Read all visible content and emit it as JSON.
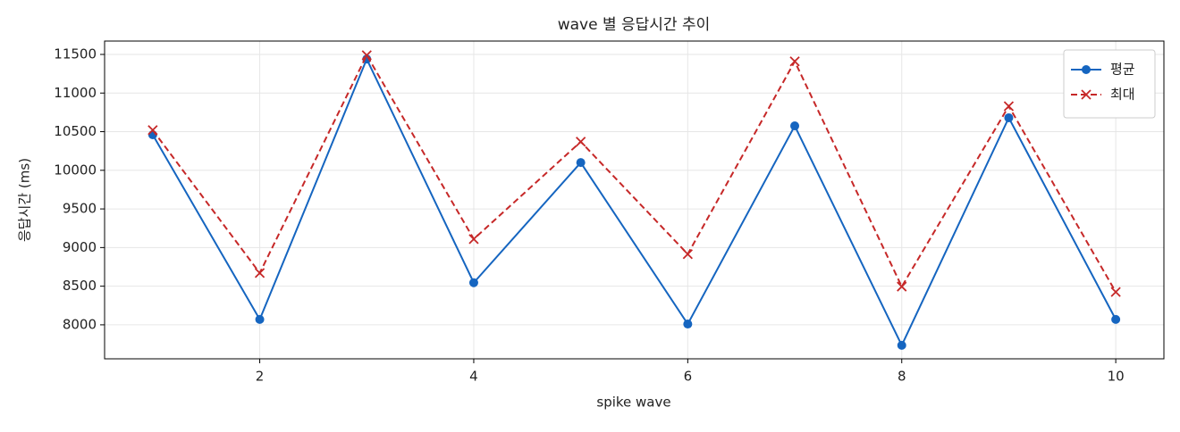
{
  "chart_data": {
    "type": "line",
    "title": "wave 별 응답시간 추이",
    "x_label": "spike wave",
    "y_label": "응답시간 (ms)",
    "x": [
      1,
      2,
      3,
      4,
      5,
      6,
      7,
      8,
      9,
      10
    ],
    "series": [
      {
        "name": "평균",
        "color": "#1565c0",
        "marker": "circle",
        "dash": "solid",
        "values": [
          10460,
          8070,
          11440,
          8545,
          10100,
          8010,
          10575,
          7735,
          10680,
          8070
        ]
      },
      {
        "name": "최대",
        "color": "#c62828",
        "marker": "x",
        "dash": "dashed",
        "values": [
          10520,
          8670,
          11490,
          9110,
          10370,
          8915,
          11410,
          8495,
          10830,
          8425
        ]
      }
    ],
    "xlim": [
      0.55,
      10.45
    ],
    "xticks": [
      2,
      4,
      6,
      8,
      10
    ],
    "ylim": [
      7560,
      11673
    ],
    "yticks": [
      8000,
      8500,
      9000,
      9500,
      10000,
      10500,
      11000,
      11500
    ],
    "grid": true,
    "legend": "upper right"
  }
}
